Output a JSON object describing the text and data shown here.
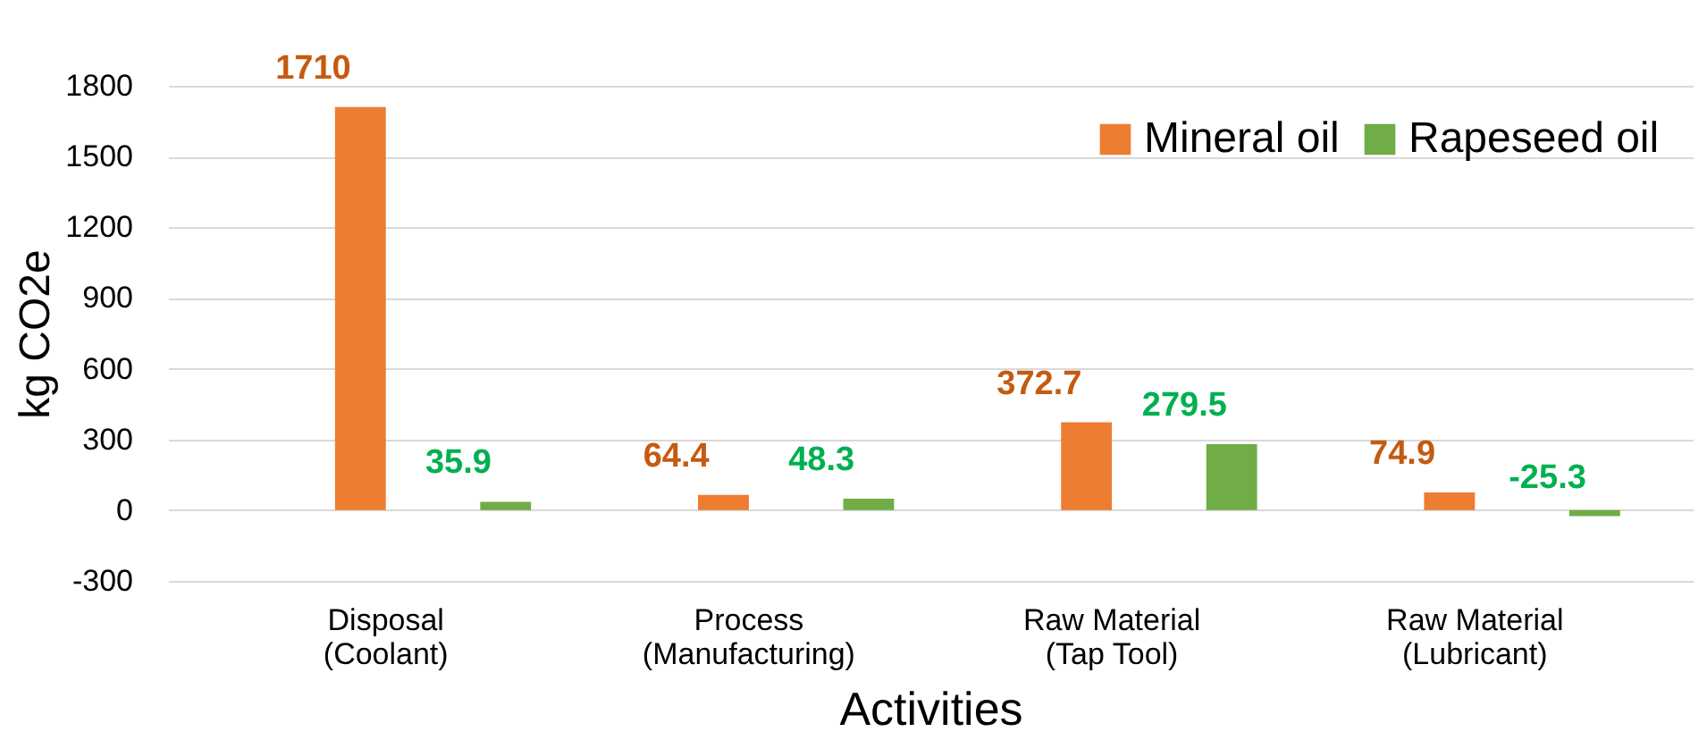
{
  "chart_data": {
    "type": "bar",
    "xlabel": "Activities",
    "ylabel": "kg CO2e",
    "categories": [
      "Disposal\n(Coolant)",
      "Process\n(Manufacturing)",
      "Raw Material\n(Tap Tool)",
      "Raw Material\n(Lubricant)"
    ],
    "series": [
      {
        "name": "Mineral oil",
        "color": "#ed7d31",
        "values": [
          1710,
          64.4,
          372.7,
          74.9
        ]
      },
      {
        "name": "Rapeseed oil",
        "color": "#70ad47",
        "values": [
          35.9,
          48.3,
          279.5,
          -25.3
        ]
      }
    ],
    "ylim": [
      -300,
      1800
    ],
    "yticks": [
      -300,
      0,
      300,
      600,
      900,
      1200,
      1500,
      1800
    ],
    "grid": "y",
    "legend": "top right",
    "data_labels": true
  }
}
